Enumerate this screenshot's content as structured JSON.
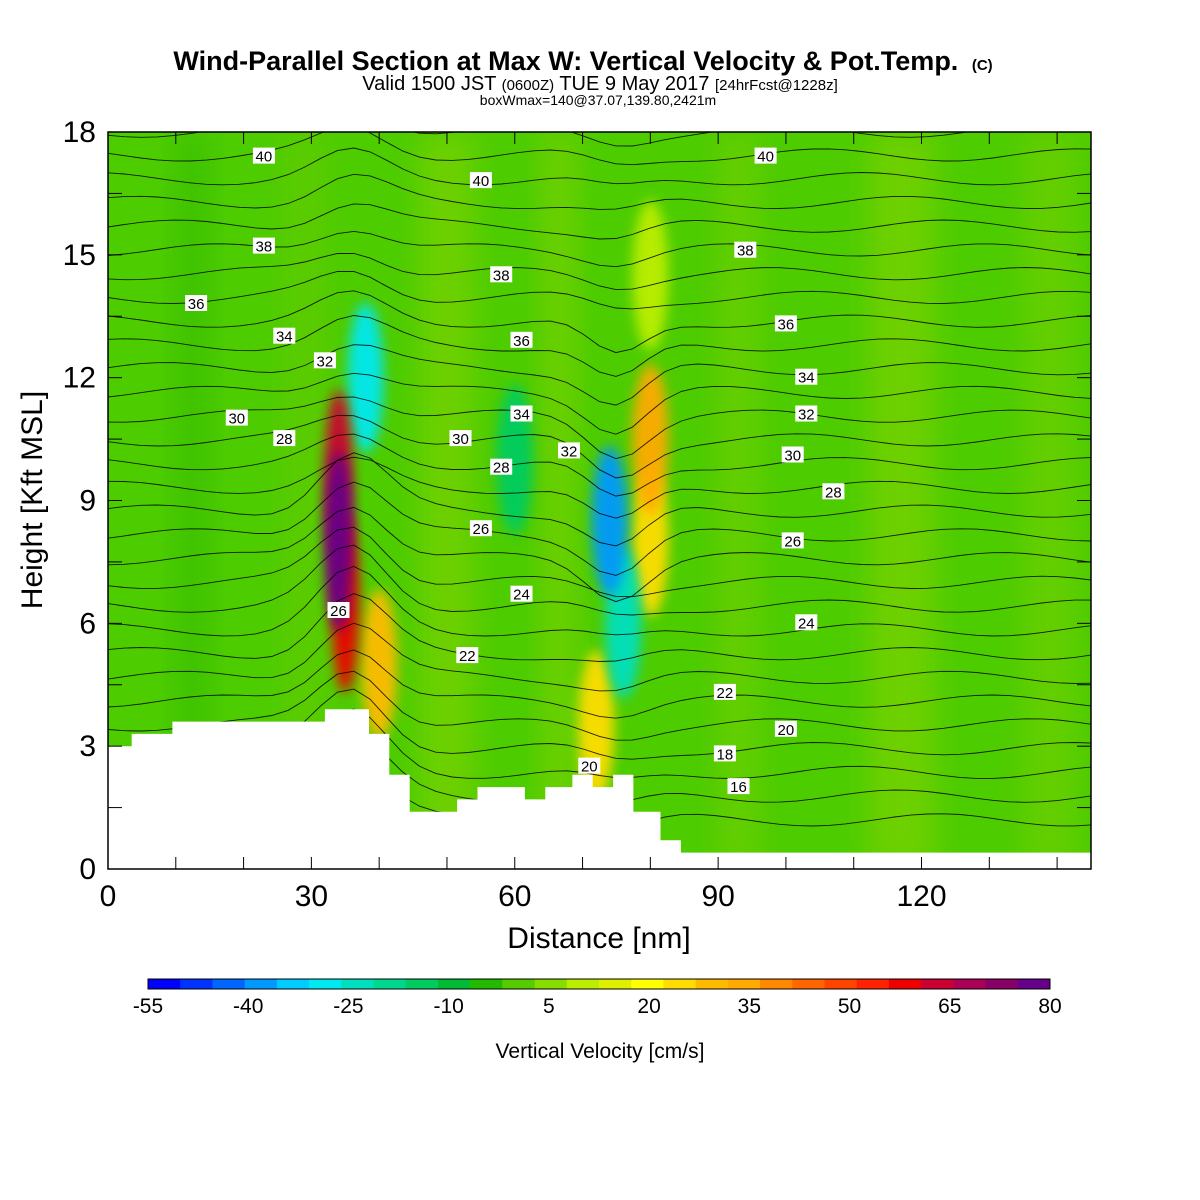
{
  "chart_data": {
    "type": "heatmap",
    "title": "Wind-Parallel Section at Max W: Vertical Velocity & Pot.Temp.",
    "title_mark": "(C)",
    "subtitle_main": "Valid 1500 JST",
    "subtitle_utc": "(0600Z)",
    "subtitle_date": "TUE 9 May 2017",
    "subtitle_fcst": "[24hrFcst@1228z]",
    "subtitle2": "boxWmax=140@37.07,139.80,2421m",
    "xlabel": "Distance [nm]",
    "ylabel": "Height [Kft MSL]",
    "xlim": [
      0,
      145
    ],
    "ylim": [
      0,
      18
    ],
    "xticks": [
      0,
      30,
      60,
      90,
      120
    ],
    "yticks": [
      0,
      3,
      6,
      9,
      12,
      15,
      18
    ],
    "colorbar": {
      "label": "Vertical Velocity [cm/s]",
      "min": -55,
      "max": 80,
      "step": 5,
      "tick_labels": [
        "-55",
        "-40",
        "-25",
        "-10",
        "5",
        "20",
        "35",
        "50",
        "65",
        "80"
      ],
      "colors": [
        "#0000ff",
        "#0033ff",
        "#0066ff",
        "#0099ff",
        "#00ccff",
        "#00e8f0",
        "#00e0c0",
        "#00d890",
        "#00cc60",
        "#00bb33",
        "#22bb00",
        "#55cc00",
        "#88dd00",
        "#bbee00",
        "#ddf000",
        "#ffff00",
        "#ffdd00",
        "#ffbb00",
        "#ffaa00",
        "#ff8800",
        "#ff6600",
        "#ff4400",
        "#ff2200",
        "#ee0000",
        "#cc0033",
        "#aa0055",
        "#880066",
        "#660088"
      ]
    },
    "w_cells": [
      {
        "x": 34,
        "z": 8.0,
        "w": 80
      },
      {
        "x": 34,
        "z": 9.5,
        "w": 65
      },
      {
        "x": 35,
        "z": 6.5,
        "w": 60
      },
      {
        "x": 40,
        "z": 5.0,
        "w": 30
      },
      {
        "x": 80,
        "z": 10.5,
        "w": 35
      },
      {
        "x": 80,
        "z": 8.0,
        "w": 25
      },
      {
        "x": 72,
        "z": 3.5,
        "w": 25
      },
      {
        "x": 74,
        "z": 8.5,
        "w": -40
      },
      {
        "x": 38,
        "z": 12.0,
        "w": -30
      },
      {
        "x": 76,
        "z": 6.0,
        "w": -25
      },
      {
        "x": 60,
        "z": 10.0,
        "w": -15
      },
      {
        "x": 80,
        "z": 14.5,
        "w": 10
      }
    ],
    "theta_contour_labels": [
      {
        "value": "40",
        "x": 23,
        "z": 17.4
      },
      {
        "value": "40",
        "x": 55,
        "z": 16.8
      },
      {
        "value": "40",
        "x": 97,
        "z": 17.4
      },
      {
        "value": "38",
        "x": 23,
        "z": 15.2
      },
      {
        "value": "38",
        "x": 58,
        "z": 14.5
      },
      {
        "value": "38",
        "x": 94,
        "z": 15.1
      },
      {
        "value": "36",
        "x": 13,
        "z": 13.8
      },
      {
        "value": "36",
        "x": 61,
        "z": 12.9
      },
      {
        "value": "36",
        "x": 100,
        "z": 13.3
      },
      {
        "value": "34",
        "x": 26,
        "z": 13.0
      },
      {
        "value": "34",
        "x": 61,
        "z": 11.1
      },
      {
        "value": "34",
        "x": 103,
        "z": 12.0
      },
      {
        "value": "32",
        "x": 32,
        "z": 12.4
      },
      {
        "value": "32",
        "x": 68,
        "z": 10.2
      },
      {
        "value": "32",
        "x": 103,
        "z": 11.1
      },
      {
        "value": "30",
        "x": 19,
        "z": 11.0
      },
      {
        "value": "30",
        "x": 52,
        "z": 10.5
      },
      {
        "value": "30",
        "x": 101,
        "z": 10.1
      },
      {
        "value": "28",
        "x": 26,
        "z": 10.5
      },
      {
        "value": "28",
        "x": 58,
        "z": 9.8
      },
      {
        "value": "28",
        "x": 107,
        "z": 9.2
      },
      {
        "value": "26",
        "x": 55,
        "z": 8.3
      },
      {
        "value": "26",
        "x": 101,
        "z": 8.0
      },
      {
        "value": "26",
        "x": 34,
        "z": 6.3
      },
      {
        "value": "24",
        "x": 61,
        "z": 6.7
      },
      {
        "value": "24",
        "x": 103,
        "z": 6.0
      },
      {
        "value": "22",
        "x": 53,
        "z": 5.2
      },
      {
        "value": "22",
        "x": 91,
        "z": 4.3
      },
      {
        "value": "20",
        "x": 100,
        "z": 3.4
      },
      {
        "value": "20",
        "x": 71,
        "z": 2.5
      },
      {
        "value": "18",
        "x": 91,
        "z": 2.8
      },
      {
        "value": "16",
        "x": 93,
        "z": 2.0
      }
    ],
    "terrain_profile": {
      "x": [
        0,
        3.5,
        3.5,
        9.5,
        9.5,
        32,
        32,
        38.5,
        38.5,
        41.5,
        41.5,
        44.5,
        44.5,
        51.5,
        51.5,
        54.5,
        54.5,
        61.5,
        61.5,
        64.5,
        64.5,
        68.5,
        68.5,
        71.5,
        71.5,
        74.5,
        74.5,
        77.5,
        77.5,
        81.5,
        81.5,
        84.5,
        84.5,
        145
      ],
      "z": [
        3.0,
        3.0,
        3.3,
        3.3,
        3.6,
        3.6,
        3.9,
        3.9,
        3.3,
        3.3,
        2.3,
        2.3,
        1.4,
        1.4,
        1.7,
        1.7,
        2.0,
        2.0,
        1.7,
        1.7,
        2.0,
        2.0,
        2.3,
        2.3,
        2.0,
        2.0,
        2.3,
        2.3,
        1.4,
        1.4,
        0.7,
        0.7,
        0.4,
        0.4
      ]
    }
  }
}
